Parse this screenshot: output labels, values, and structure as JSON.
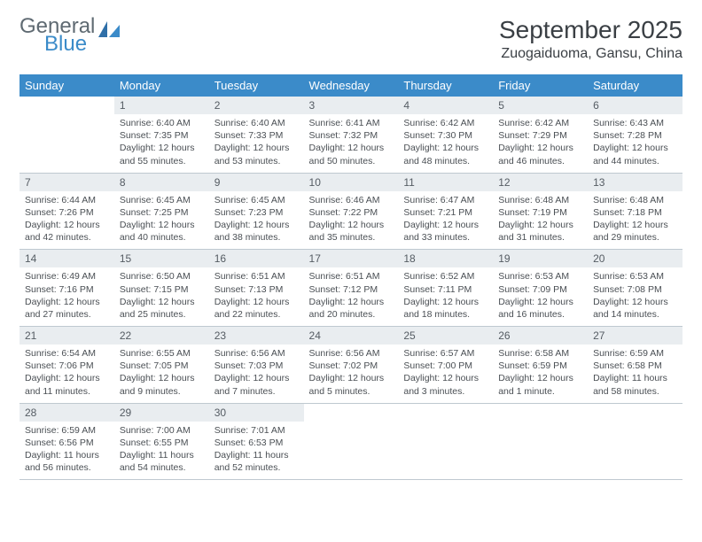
{
  "logo": {
    "word1": "General",
    "word2": "Blue",
    "color_gray": "#5f6a72",
    "color_blue": "#3b8bc9"
  },
  "title": "September 2025",
  "location": "Zuogaiduoma, Gansu, China",
  "header_bg": "#3b8bc9",
  "daynum_bg": "#e9edf0",
  "row_border": "#3b6f9a",
  "weekdays": [
    "Sunday",
    "Monday",
    "Tuesday",
    "Wednesday",
    "Thursday",
    "Friday",
    "Saturday"
  ],
  "weeks": [
    [
      {
        "n": "",
        "sr": "",
        "ss": "",
        "dl": ""
      },
      {
        "n": "1",
        "sr": "Sunrise: 6:40 AM",
        "ss": "Sunset: 7:35 PM",
        "dl": "Daylight: 12 hours and 55 minutes."
      },
      {
        "n": "2",
        "sr": "Sunrise: 6:40 AM",
        "ss": "Sunset: 7:33 PM",
        "dl": "Daylight: 12 hours and 53 minutes."
      },
      {
        "n": "3",
        "sr": "Sunrise: 6:41 AM",
        "ss": "Sunset: 7:32 PM",
        "dl": "Daylight: 12 hours and 50 minutes."
      },
      {
        "n": "4",
        "sr": "Sunrise: 6:42 AM",
        "ss": "Sunset: 7:30 PM",
        "dl": "Daylight: 12 hours and 48 minutes."
      },
      {
        "n": "5",
        "sr": "Sunrise: 6:42 AM",
        "ss": "Sunset: 7:29 PM",
        "dl": "Daylight: 12 hours and 46 minutes."
      },
      {
        "n": "6",
        "sr": "Sunrise: 6:43 AM",
        "ss": "Sunset: 7:28 PM",
        "dl": "Daylight: 12 hours and 44 minutes."
      }
    ],
    [
      {
        "n": "7",
        "sr": "Sunrise: 6:44 AM",
        "ss": "Sunset: 7:26 PM",
        "dl": "Daylight: 12 hours and 42 minutes."
      },
      {
        "n": "8",
        "sr": "Sunrise: 6:45 AM",
        "ss": "Sunset: 7:25 PM",
        "dl": "Daylight: 12 hours and 40 minutes."
      },
      {
        "n": "9",
        "sr": "Sunrise: 6:45 AM",
        "ss": "Sunset: 7:23 PM",
        "dl": "Daylight: 12 hours and 38 minutes."
      },
      {
        "n": "10",
        "sr": "Sunrise: 6:46 AM",
        "ss": "Sunset: 7:22 PM",
        "dl": "Daylight: 12 hours and 35 minutes."
      },
      {
        "n": "11",
        "sr": "Sunrise: 6:47 AM",
        "ss": "Sunset: 7:21 PM",
        "dl": "Daylight: 12 hours and 33 minutes."
      },
      {
        "n": "12",
        "sr": "Sunrise: 6:48 AM",
        "ss": "Sunset: 7:19 PM",
        "dl": "Daylight: 12 hours and 31 minutes."
      },
      {
        "n": "13",
        "sr": "Sunrise: 6:48 AM",
        "ss": "Sunset: 7:18 PM",
        "dl": "Daylight: 12 hours and 29 minutes."
      }
    ],
    [
      {
        "n": "14",
        "sr": "Sunrise: 6:49 AM",
        "ss": "Sunset: 7:16 PM",
        "dl": "Daylight: 12 hours and 27 minutes."
      },
      {
        "n": "15",
        "sr": "Sunrise: 6:50 AM",
        "ss": "Sunset: 7:15 PM",
        "dl": "Daylight: 12 hours and 25 minutes."
      },
      {
        "n": "16",
        "sr": "Sunrise: 6:51 AM",
        "ss": "Sunset: 7:13 PM",
        "dl": "Daylight: 12 hours and 22 minutes."
      },
      {
        "n": "17",
        "sr": "Sunrise: 6:51 AM",
        "ss": "Sunset: 7:12 PM",
        "dl": "Daylight: 12 hours and 20 minutes."
      },
      {
        "n": "18",
        "sr": "Sunrise: 6:52 AM",
        "ss": "Sunset: 7:11 PM",
        "dl": "Daylight: 12 hours and 18 minutes."
      },
      {
        "n": "19",
        "sr": "Sunrise: 6:53 AM",
        "ss": "Sunset: 7:09 PM",
        "dl": "Daylight: 12 hours and 16 minutes."
      },
      {
        "n": "20",
        "sr": "Sunrise: 6:53 AM",
        "ss": "Sunset: 7:08 PM",
        "dl": "Daylight: 12 hours and 14 minutes."
      }
    ],
    [
      {
        "n": "21",
        "sr": "Sunrise: 6:54 AM",
        "ss": "Sunset: 7:06 PM",
        "dl": "Daylight: 12 hours and 11 minutes."
      },
      {
        "n": "22",
        "sr": "Sunrise: 6:55 AM",
        "ss": "Sunset: 7:05 PM",
        "dl": "Daylight: 12 hours and 9 minutes."
      },
      {
        "n": "23",
        "sr": "Sunrise: 6:56 AM",
        "ss": "Sunset: 7:03 PM",
        "dl": "Daylight: 12 hours and 7 minutes."
      },
      {
        "n": "24",
        "sr": "Sunrise: 6:56 AM",
        "ss": "Sunset: 7:02 PM",
        "dl": "Daylight: 12 hours and 5 minutes."
      },
      {
        "n": "25",
        "sr": "Sunrise: 6:57 AM",
        "ss": "Sunset: 7:00 PM",
        "dl": "Daylight: 12 hours and 3 minutes."
      },
      {
        "n": "26",
        "sr": "Sunrise: 6:58 AM",
        "ss": "Sunset: 6:59 PM",
        "dl": "Daylight: 12 hours and 1 minute."
      },
      {
        "n": "27",
        "sr": "Sunrise: 6:59 AM",
        "ss": "Sunset: 6:58 PM",
        "dl": "Daylight: 11 hours and 58 minutes."
      }
    ],
    [
      {
        "n": "28",
        "sr": "Sunrise: 6:59 AM",
        "ss": "Sunset: 6:56 PM",
        "dl": "Daylight: 11 hours and 56 minutes."
      },
      {
        "n": "29",
        "sr": "Sunrise: 7:00 AM",
        "ss": "Sunset: 6:55 PM",
        "dl": "Daylight: 11 hours and 54 minutes."
      },
      {
        "n": "30",
        "sr": "Sunrise: 7:01 AM",
        "ss": "Sunset: 6:53 PM",
        "dl": "Daylight: 11 hours and 52 minutes."
      },
      {
        "n": "",
        "sr": "",
        "ss": "",
        "dl": ""
      },
      {
        "n": "",
        "sr": "",
        "ss": "",
        "dl": ""
      },
      {
        "n": "",
        "sr": "",
        "ss": "",
        "dl": ""
      },
      {
        "n": "",
        "sr": "",
        "ss": "",
        "dl": ""
      }
    ]
  ]
}
